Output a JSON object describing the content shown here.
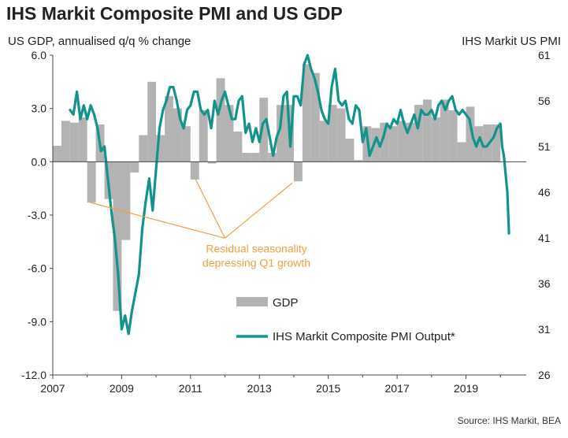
{
  "title": "IHS Markit Composite PMI and US GDP",
  "source": "Source: IHS Markit, BEA",
  "chart_data": {
    "type": "bar+line",
    "title": "IHS Markit Composite PMI and US GDP",
    "left_axis_label": "US GDP, annualised q/q % change",
    "right_axis_label": "IHS Markit  US PMI",
    "left_ylim": [
      -12,
      6
    ],
    "right_ylim": [
      26,
      61
    ],
    "left_ticks": [
      "6.0",
      "3.0",
      "0.0",
      "-3.0",
      "-6.0",
      "-9.0",
      "-12.0"
    ],
    "left_tick_values": [
      6,
      3,
      0,
      -3,
      -6,
      -9,
      -12
    ],
    "right_ticks": [
      "61",
      "56",
      "51",
      "46",
      "41",
      "36",
      "31",
      "26"
    ],
    "right_tick_values": [
      61,
      56,
      51,
      46,
      41,
      36,
      31,
      26
    ],
    "x_ticks": [
      "2007",
      "2009",
      "2011",
      "2013",
      "2015",
      "2017",
      "2019"
    ],
    "x_tick_values": [
      2007,
      2009,
      2011,
      2013,
      2015,
      2017,
      2019
    ],
    "xlim": [
      2007,
      2020.75
    ],
    "annotation": {
      "line1": "Residual seasonality",
      "line2": "depressing Q1 growth",
      "color": "#f0a040",
      "anchor": [
        2012.0,
        -4.3
      ],
      "targets": [
        [
          2008.1,
          -2.3
        ],
        [
          2011.15,
          -1.0
        ],
        [
          2013.95,
          -1.2
        ]
      ]
    },
    "legend_gdp": "GDP",
    "legend_pmi": "IHS Markit Composite PMI Output*",
    "colors": {
      "gdp": "#b3b3b3",
      "pmi": "#13938b",
      "annotation": "#f0a040"
    },
    "gdp": {
      "name": "GDP",
      "x": [
        2007.0,
        2007.25,
        2007.5,
        2007.75,
        2008.0,
        2008.25,
        2008.5,
        2008.75,
        2009.0,
        2009.25,
        2009.5,
        2009.75,
        2010.0,
        2010.25,
        2010.5,
        2010.75,
        2011.0,
        2011.25,
        2011.5,
        2011.75,
        2012.0,
        2012.25,
        2012.5,
        2012.75,
        2013.0,
        2013.25,
        2013.5,
        2013.75,
        2014.0,
        2014.25,
        2014.5,
        2014.75,
        2015.0,
        2015.25,
        2015.5,
        2015.75,
        2016.0,
        2016.25,
        2016.5,
        2016.75,
        2017.0,
        2017.25,
        2017.5,
        2017.75,
        2018.0,
        2018.25,
        2018.5,
        2018.75,
        2019.0,
        2019.25,
        2019.5,
        2019.75
      ],
      "values": [
        0.9,
        2.3,
        2.2,
        2.5,
        -2.3,
        2.1,
        -2.1,
        -8.4,
        -4.4,
        -0.6,
        1.5,
        4.5,
        1.5,
        3.7,
        3.0,
        2.0,
        -1.0,
        2.9,
        -0.1,
        4.7,
        3.2,
        1.7,
        0.5,
        0.5,
        3.6,
        0.5,
        3.2,
        3.2,
        -1.1,
        5.5,
        5.0,
        2.3,
        3.2,
        3.0,
        1.3,
        0.1,
        2.0,
        1.9,
        2.2,
        2.0,
        2.3,
        2.2,
        3.2,
        3.5,
        2.5,
        3.5,
        2.9,
        1.1,
        3.1,
        2.0,
        2.1,
        2.1
      ]
    },
    "pmi": {
      "name": "IHS Markit Composite PMI Output*",
      "x": [
        2007.5,
        2007.6,
        2007.7,
        2007.8,
        2007.9,
        2008.0,
        2008.1,
        2008.2,
        2008.3,
        2008.4,
        2008.5,
        2008.6,
        2008.7,
        2008.8,
        2008.9,
        2009.0,
        2009.1,
        2009.2,
        2009.3,
        2009.4,
        2009.5,
        2009.6,
        2009.7,
        2009.8,
        2009.9,
        2010.0,
        2010.1,
        2010.2,
        2010.3,
        2010.4,
        2010.5,
        2010.6,
        2010.7,
        2010.8,
        2010.9,
        2011.0,
        2011.1,
        2011.2,
        2011.3,
        2011.4,
        2011.5,
        2011.6,
        2011.7,
        2011.8,
        2011.9,
        2012.0,
        2012.1,
        2012.2,
        2012.3,
        2012.4,
        2012.5,
        2012.6,
        2012.7,
        2012.8,
        2012.9,
        2013.0,
        2013.1,
        2013.2,
        2013.3,
        2013.4,
        2013.5,
        2013.6,
        2013.7,
        2013.8,
        2013.85,
        2013.9,
        2014.0,
        2014.1,
        2014.2,
        2014.3,
        2014.4,
        2014.5,
        2014.6,
        2014.7,
        2014.8,
        2014.9,
        2015.0,
        2015.1,
        2015.2,
        2015.3,
        2015.4,
        2015.5,
        2015.6,
        2015.7,
        2015.8,
        2015.9,
        2016.0,
        2016.1,
        2016.2,
        2016.3,
        2016.4,
        2016.5,
        2016.6,
        2016.7,
        2016.8,
        2016.9,
        2017.0,
        2017.1,
        2017.2,
        2017.3,
        2017.4,
        2017.5,
        2017.6,
        2017.7,
        2017.8,
        2017.9,
        2018.0,
        2018.1,
        2018.2,
        2018.3,
        2018.4,
        2018.5,
        2018.6,
        2018.7,
        2018.8,
        2018.9,
        2019.0,
        2019.1,
        2019.2,
        2019.3,
        2019.4,
        2019.5,
        2019.6,
        2019.7,
        2019.8,
        2019.9,
        2020.0,
        2020.05,
        2020.1,
        2020.2,
        2020.25
      ],
      "values": [
        55,
        54.5,
        57,
        54,
        55.5,
        54,
        55.5,
        54.5,
        53,
        50.5,
        51,
        47.5,
        44,
        41,
        37,
        31,
        32.5,
        30.5,
        33,
        35,
        37,
        42,
        45,
        47.5,
        44,
        48.5,
        53,
        55,
        56,
        57.5,
        57.5,
        56,
        54,
        53,
        55,
        55.5,
        57,
        57,
        55,
        54.5,
        55,
        53,
        56,
        54.5,
        56,
        57,
        55.5,
        54,
        54,
        56,
        56.5,
        52.5,
        53.5,
        51.5,
        53,
        51.5,
        53.5,
        54,
        52,
        50,
        52,
        53,
        56.5,
        57,
        54,
        51,
        56.5,
        56.5,
        55.5,
        60,
        61,
        59.5,
        58.5,
        57,
        55,
        54,
        53.5,
        57.5,
        59.5,
        56,
        55.5,
        56,
        54,
        53.5,
        55.5,
        55,
        51.5,
        53,
        50,
        51,
        52,
        51,
        52,
        53.5,
        53,
        54,
        53.5,
        55,
        53.5,
        52.5,
        53.5,
        54.5,
        53,
        55,
        54.5,
        54.5,
        55,
        54,
        55.5,
        56,
        55,
        56,
        56.5,
        55,
        54.5,
        55,
        54.5,
        54,
        52,
        51,
        52,
        51,
        51,
        51.5,
        52,
        53,
        53.5,
        51,
        50,
        46,
        41.5
      ]
    }
  }
}
